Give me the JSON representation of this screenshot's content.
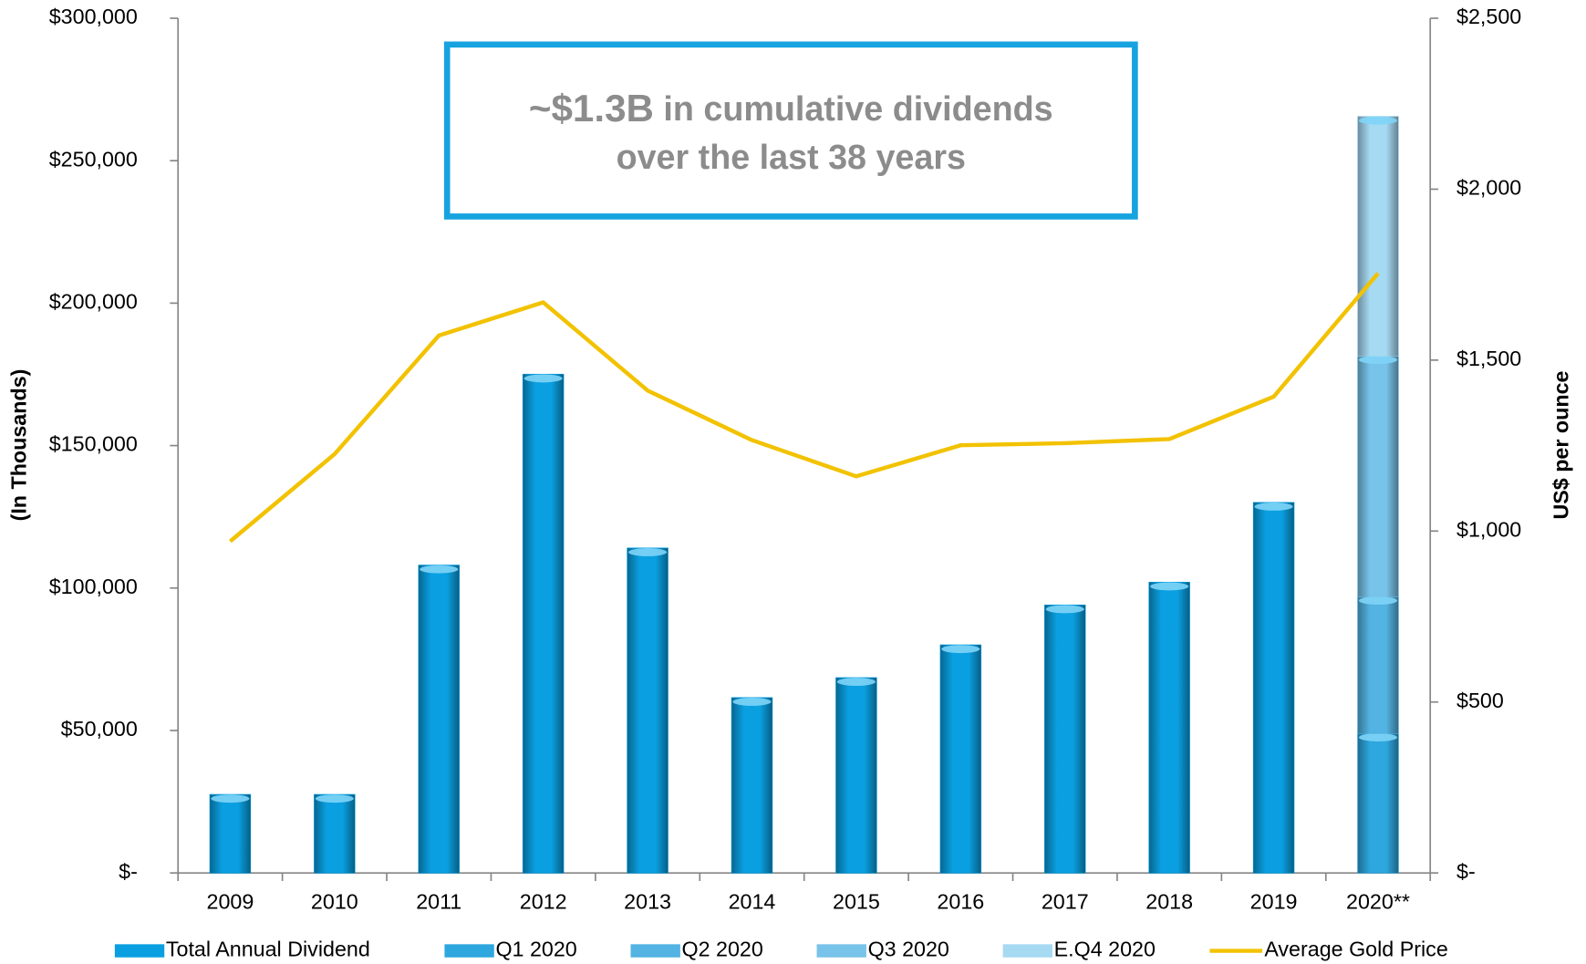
{
  "chart_data": {
    "type": "bar",
    "stacked": true,
    "y_label": "(In Thousands)",
    "y2_label": "US$ per ounce",
    "annotation": {
      "highlight": "~$1.3B",
      "lines": [
        "in cumulative dividends",
        "over the last 38 years"
      ]
    },
    "categories": [
      "2009",
      "2010",
      "2011",
      "2012",
      "2013",
      "2014",
      "2015",
      "2016",
      "2017",
      "2018",
      "2019",
      "2020**"
    ],
    "series": [
      {
        "name": "Total Annual Dividend",
        "color": "#0a9fe0",
        "values": [
          27500,
          27500,
          108000,
          175000,
          114000,
          61500,
          68500,
          80000,
          94000,
          102000,
          130000,
          null
        ]
      },
      {
        "name": "Q1 2020",
        "color": "#2ea6de",
        "values": [
          null,
          null,
          null,
          null,
          null,
          null,
          null,
          null,
          null,
          null,
          null,
          49000
        ]
      },
      {
        "name": "Q2 2020",
        "color": "#53b3e2",
        "values": [
          null,
          null,
          null,
          null,
          null,
          null,
          null,
          null,
          null,
          null,
          null,
          48000
        ]
      },
      {
        "name": "Q3 2020",
        "color": "#78c3e9",
        "values": [
          null,
          null,
          null,
          null,
          null,
          null,
          null,
          null,
          null,
          null,
          null,
          84500
        ]
      },
      {
        "name": "E.Q4 2020",
        "color": "#a6d9f2",
        "values": [
          null,
          null,
          null,
          null,
          null,
          null,
          null,
          null,
          null,
          null,
          null,
          84000
        ]
      },
      {
        "name": "Average Gold Price",
        "type": "line",
        "axis": "y2",
        "color": "#f2c200",
        "values": [
          970,
          1225,
          1572,
          1669,
          1411,
          1266,
          1160,
          1251,
          1257,
          1269,
          1393,
          1754
        ]
      }
    ],
    "ylim": [
      0,
      300000
    ],
    "yticks": [
      {
        "value": 0,
        "label": "$-"
      },
      {
        "value": 50000,
        "label": "$50,000"
      },
      {
        "value": 100000,
        "label": "$100,000"
      },
      {
        "value": 150000,
        "label": "$150,000"
      },
      {
        "value": 200000,
        "label": "$200,000"
      },
      {
        "value": 250000,
        "label": "$250,000"
      },
      {
        "value": 300000,
        "label": "$300,000"
      }
    ],
    "y2lim": [
      0,
      2500
    ],
    "y2ticks": [
      {
        "value": 0,
        "label": "$-"
      },
      {
        "value": 500,
        "label": "$500"
      },
      {
        "value": 1000,
        "label": "$1,000"
      },
      {
        "value": 1500,
        "label": "$1,500"
      },
      {
        "value": 2000,
        "label": "$2,000"
      },
      {
        "value": 2500,
        "label": "$2,500"
      }
    ],
    "grid": false,
    "legend": "bottom"
  }
}
